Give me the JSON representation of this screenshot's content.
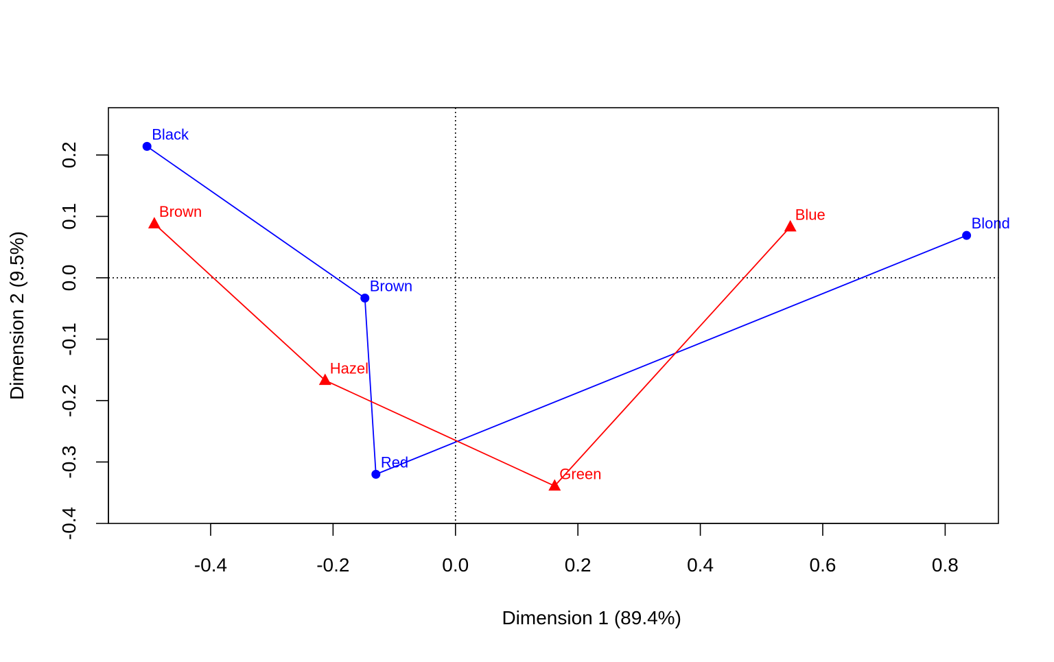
{
  "chart_data": {
    "type": "scatter",
    "title": "",
    "xlabel": "Dimension 1 (89.4%)",
    "ylabel": "Dimension 2 (9.5%)",
    "xlim": [
      -0.567,
      0.887
    ],
    "ylim": [
      -0.4,
      0.277
    ],
    "x_ticks": [
      {
        "value": -0.4,
        "label": "-0.4"
      },
      {
        "value": -0.2,
        "label": "-0.2"
      },
      {
        "value": 0.0,
        "label": "0.0"
      },
      {
        "value": 0.2,
        "label": "0.2"
      },
      {
        "value": 0.4,
        "label": "0.4"
      },
      {
        "value": 0.6,
        "label": "0.6"
      },
      {
        "value": 0.8,
        "label": "0.8"
      }
    ],
    "y_ticks": [
      {
        "value": -0.4,
        "label": "-0.4"
      },
      {
        "value": -0.3,
        "label": "-0.3"
      },
      {
        "value": -0.2,
        "label": "-0.2"
      },
      {
        "value": -0.1,
        "label": "-0.1"
      },
      {
        "value": 0.0,
        "label": "0.0"
      },
      {
        "value": 0.1,
        "label": "0.1"
      },
      {
        "value": 0.2,
        "label": "0.2"
      }
    ],
    "reference_lines": {
      "x": 0,
      "y": 0,
      "style": "dotted"
    },
    "grid": false,
    "series": [
      {
        "color": "#0000ff",
        "marker": "circle",
        "connected": true,
        "points": [
          {
            "label": "Black",
            "x": -0.504,
            "y": 0.214
          },
          {
            "label": "Brown",
            "x": -0.148,
            "y": -0.033
          },
          {
            "label": "Red",
            "x": -0.13,
            "y": -0.32
          },
          {
            "label": "Blond",
            "x": 0.835,
            "y": 0.069
          }
        ]
      },
      {
        "color": "#ff0000",
        "marker": "triangle",
        "connected": true,
        "points": [
          {
            "label": "Brown",
            "x": -0.492,
            "y": 0.088
          },
          {
            "label": "Hazel",
            "x": -0.213,
            "y": -0.167
          },
          {
            "label": "Green",
            "x": 0.162,
            "y": -0.339
          },
          {
            "label": "Blue",
            "x": 0.547,
            "y": 0.083
          }
        ]
      }
    ]
  }
}
